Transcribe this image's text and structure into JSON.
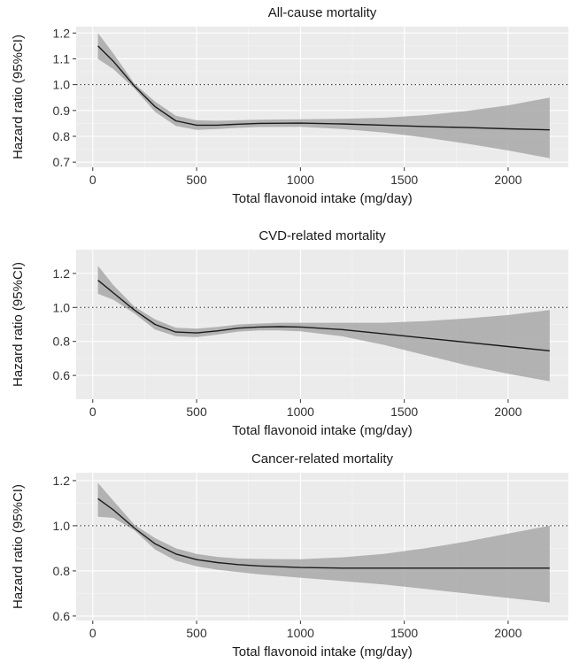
{
  "chart_data": [
    {
      "type": "line",
      "title": "All-cause mortality",
      "xlabel": "Total flavonoid intake (mg/day)",
      "ylabel": "Hazard ratio (95%CI)",
      "xlim": [
        -80,
        2290
      ],
      "ylim": [
        0.68,
        1.225
      ],
      "xticks": [
        0,
        500,
        1000,
        1500,
        2000
      ],
      "yticks": [
        0.7,
        0.8,
        0.9,
        1.0,
        1.1,
        1.2
      ],
      "ytick_labels": [
        "0.7",
        "0.8",
        "0.9",
        "1.0",
        "1.1",
        "1.2"
      ],
      "reference_line": 1.0,
      "grid": true,
      "series": [
        {
          "x": [
            25,
            100,
            200,
            300,
            400,
            500,
            600,
            700,
            800,
            1000,
            1200,
            1400,
            1600,
            1800,
            2000,
            2200
          ],
          "y": [
            1.15,
            1.09,
            0.995,
            0.915,
            0.86,
            0.843,
            0.843,
            0.847,
            0.85,
            0.851,
            0.848,
            0.843,
            0.838,
            0.834,
            0.829,
            0.825
          ],
          "lower": [
            1.1,
            1.06,
            0.985,
            0.895,
            0.84,
            0.825,
            0.828,
            0.833,
            0.836,
            0.837,
            0.828,
            0.815,
            0.795,
            0.772,
            0.745,
            0.715
          ],
          "upper": [
            1.2,
            1.12,
            1.005,
            0.935,
            0.88,
            0.862,
            0.86,
            0.862,
            0.864,
            0.866,
            0.868,
            0.872,
            0.882,
            0.898,
            0.92,
            0.95
          ]
        }
      ]
    },
    {
      "type": "line",
      "title": "CVD-related mortality",
      "xlabel": "Total flavonoid intake (mg/day)",
      "ylabel": "Hazard ratio (95%CI)",
      "xlim": [
        -80,
        2290
      ],
      "ylim": [
        0.46,
        1.34
      ],
      "xticks": [
        0,
        500,
        1000,
        1500,
        2000
      ],
      "yticks": [
        0.6,
        0.8,
        1.0,
        1.2
      ],
      "ytick_labels": [
        "0.6",
        "0.8",
        "1.0",
        "1.2"
      ],
      "reference_line": 1.0,
      "grid": true,
      "series": [
        {
          "x": [
            25,
            100,
            200,
            300,
            400,
            500,
            600,
            700,
            800,
            900,
            1000,
            1200,
            1400,
            1600,
            1800,
            2000,
            2200
          ],
          "y": [
            1.16,
            1.085,
            0.985,
            0.9,
            0.855,
            0.85,
            0.862,
            0.878,
            0.885,
            0.887,
            0.885,
            0.87,
            0.845,
            0.82,
            0.795,
            0.77,
            0.745
          ],
          "lower": [
            1.08,
            1.045,
            0.965,
            0.87,
            0.83,
            0.825,
            0.84,
            0.858,
            0.865,
            0.865,
            0.86,
            0.83,
            0.78,
            0.72,
            0.66,
            0.61,
            0.565
          ],
          "upper": [
            1.245,
            1.13,
            1.005,
            0.93,
            0.88,
            0.875,
            0.885,
            0.9,
            0.905,
            0.91,
            0.91,
            0.91,
            0.91,
            0.92,
            0.935,
            0.955,
            0.985
          ]
        }
      ]
    },
    {
      "type": "line",
      "title": "Cancer-related mortality",
      "xlabel": "Total flavonoid intake (mg/day)",
      "ylabel": "Hazard ratio (95%CI)",
      "xlim": [
        -80,
        2290
      ],
      "ylim": [
        0.58,
        1.235
      ],
      "xticks": [
        0,
        500,
        1000,
        1500,
        2000
      ],
      "yticks": [
        0.6,
        0.8,
        1.0,
        1.2
      ],
      "ytick_labels": [
        "0.6",
        "0.8",
        "1.0",
        "1.2"
      ],
      "reference_line": 1.0,
      "grid": true,
      "series": [
        {
          "x": [
            25,
            100,
            200,
            300,
            400,
            500,
            600,
            700,
            800,
            1000,
            1200,
            1400,
            1600,
            1800,
            2000,
            2200
          ],
          "y": [
            1.12,
            1.07,
            0.99,
            0.92,
            0.875,
            0.85,
            0.837,
            0.828,
            0.822,
            0.815,
            0.812,
            0.812,
            0.812,
            0.812,
            0.812,
            0.812
          ],
          "lower": [
            1.04,
            1.035,
            0.98,
            0.895,
            0.845,
            0.82,
            0.805,
            0.795,
            0.785,
            0.77,
            0.755,
            0.74,
            0.72,
            0.7,
            0.68,
            0.66
          ],
          "upper": [
            1.19,
            1.11,
            1.005,
            0.945,
            0.9,
            0.875,
            0.862,
            0.855,
            0.853,
            0.852,
            0.86,
            0.875,
            0.9,
            0.93,
            0.965,
            1.0
          ]
        }
      ]
    }
  ]
}
